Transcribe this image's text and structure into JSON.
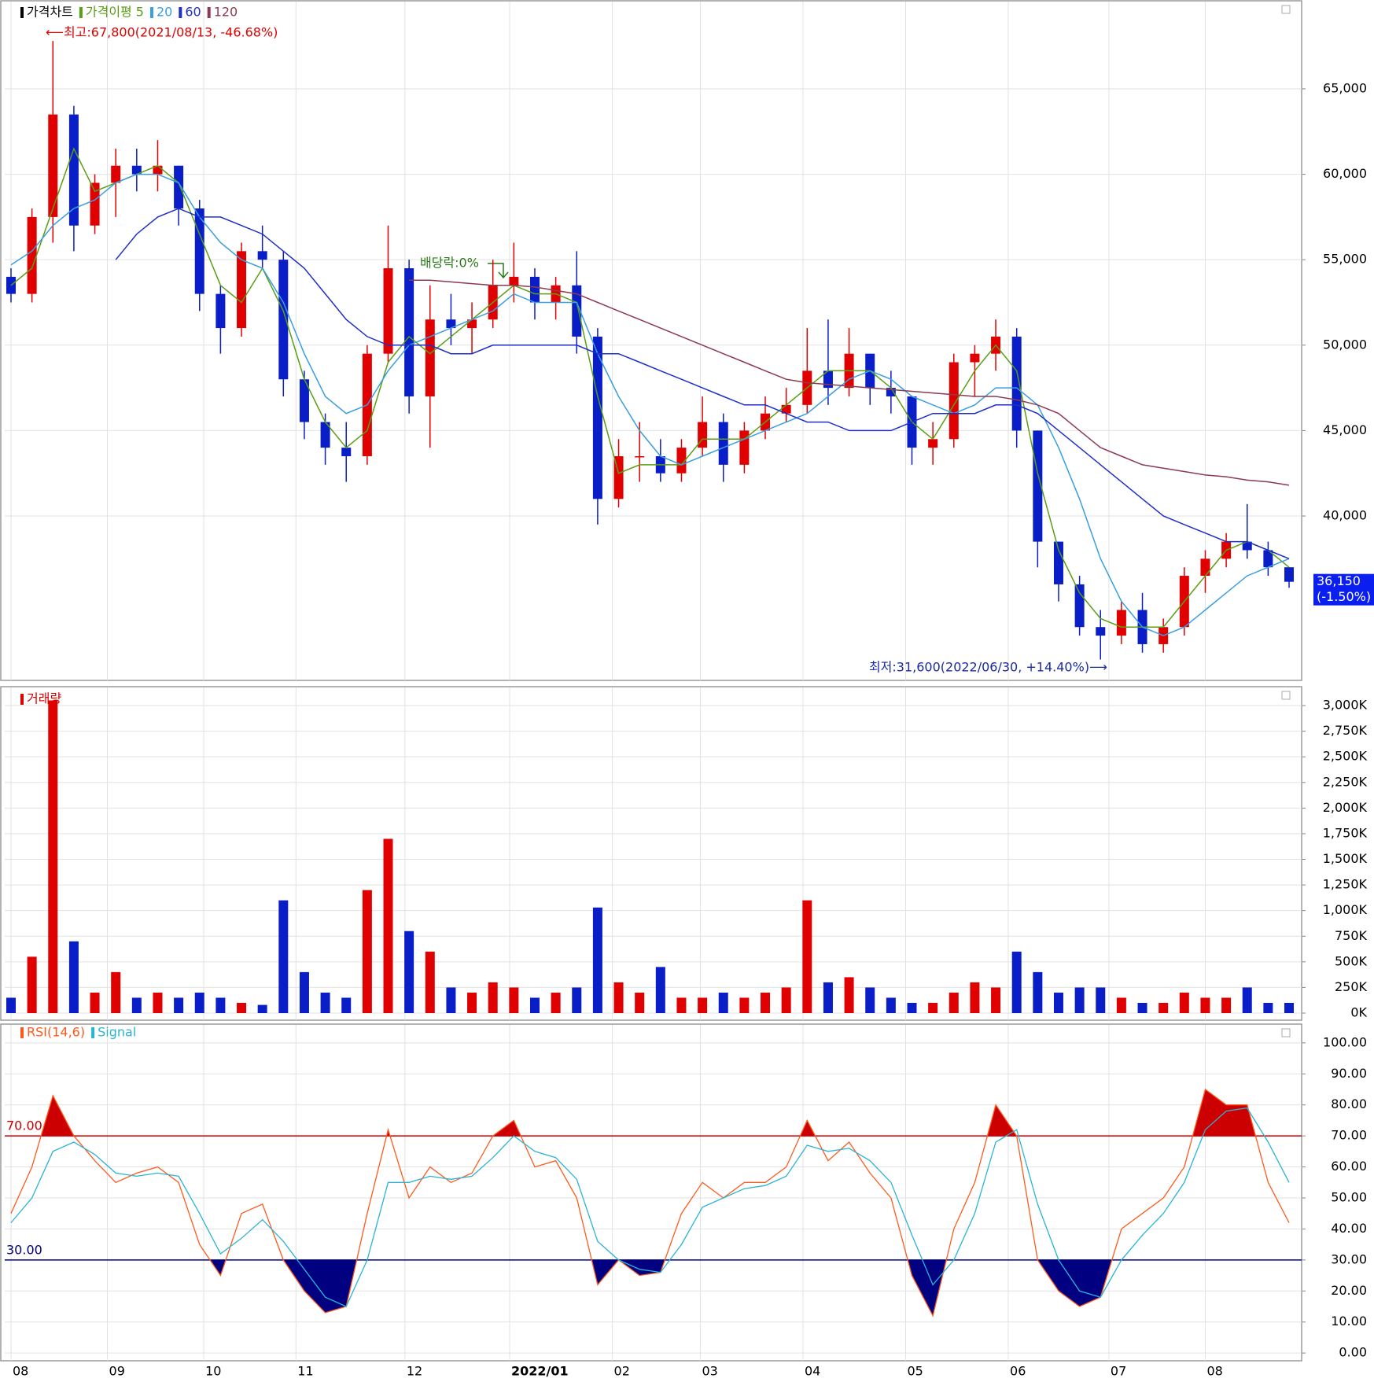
{
  "chart_data": [
    {
      "type": "candlestick",
      "title": "가격차트",
      "ma_label": "가격이평",
      "categories": [
        null,
        null,
        null,
        null,
        null,
        null,
        null,
        null,
        null,
        null,
        null,
        null,
        null,
        null,
        null,
        null,
        null,
        null,
        null,
        null,
        null,
        null,
        null,
        null,
        null,
        null,
        null,
        null,
        null,
        null,
        null,
        null,
        null,
        null,
        null,
        null,
        null,
        null,
        null,
        null,
        null,
        null,
        null,
        null,
        null,
        null,
        null,
        null,
        null,
        null,
        null,
        null,
        null,
        null,
        null,
        null,
        null,
        null,
        null,
        null,
        null,
        null
      ],
      "open": [
        54000,
        53000,
        57500,
        63500,
        57000,
        59500,
        60500,
        60000,
        60500,
        58000,
        53000,
        51000,
        55500,
        55000,
        48000,
        45500,
        44000,
        43500,
        49500,
        54500,
        47000,
        51500,
        51000,
        51500,
        53500,
        54000,
        52500,
        53500,
        50500,
        41000,
        43500,
        43500,
        42500,
        44000,
        45500,
        43000,
        45000,
        46000,
        46500,
        48500,
        47500,
        49500,
        47500,
        47000,
        44000,
        44500,
        49000,
        49500,
        50500,
        45000,
        38500,
        36000,
        33500,
        33000,
        34500,
        32500,
        33500,
        36500,
        37500,
        38500,
        38000,
        37000
      ],
      "high": [
        54500,
        58000,
        67800,
        64000,
        60000,
        61500,
        61500,
        62000,
        60500,
        58500,
        53500,
        56000,
        57000,
        55500,
        48500,
        46000,
        45500,
        50000,
        57000,
        55000,
        53500,
        53000,
        52500,
        55000,
        56000,
        54500,
        54000,
        55500,
        51000,
        44500,
        45500,
        44500,
        44500,
        47000,
        46000,
        45500,
        47000,
        47500,
        51000,
        51500,
        51000,
        49500,
        48500,
        47000,
        45500,
        49500,
        50000,
        51500,
        51000,
        45000,
        38500,
        36500,
        34500,
        35000,
        35500,
        34000,
        37000,
        38000,
        39000,
        40700,
        38500,
        37000
      ],
      "low": [
        52500,
        52500,
        56000,
        55500,
        56500,
        57500,
        59000,
        59000,
        57000,
        52000,
        49500,
        50500,
        54500,
        47000,
        44500,
        43000,
        42000,
        43000,
        49000,
        46000,
        44000,
        50000,
        49500,
        51000,
        52500,
        51500,
        51500,
        49500,
        39500,
        40500,
        42000,
        42000,
        42000,
        43500,
        42000,
        42500,
        44500,
        45500,
        46000,
        46500,
        47000,
        46500,
        46000,
        43000,
        43000,
        44000,
        47000,
        48500,
        44000,
        37000,
        35000,
        33000,
        31600,
        32500,
        32000,
        32000,
        33000,
        35500,
        37000,
        37500,
        36500,
        35800
      ],
      "close": [
        53000,
        57500,
        63500,
        57000,
        59500,
        60500,
        60000,
        60500,
        58000,
        53000,
        51000,
        55500,
        55000,
        48000,
        45500,
        44000,
        43500,
        49500,
        54500,
        47000,
        51500,
        51000,
        51500,
        53500,
        54000,
        52500,
        53500,
        50500,
        41000,
        43500,
        43500,
        42500,
        44000,
        45500,
        43000,
        45000,
        46000,
        46500,
        48500,
        47500,
        49500,
        47500,
        47000,
        44000,
        44500,
        49000,
        49500,
        50500,
        45000,
        38500,
        36000,
        33500,
        33000,
        34500,
        32500,
        33500,
        36500,
        37500,
        38500,
        38000,
        37000,
        36150
      ],
      "up_color": "#e00000",
      "down_color": "#0a1ec8",
      "series": [
        {
          "name": "5",
          "color": "#5a9e14",
          "values": [
            53500,
            54500,
            58000,
            61500,
            59000,
            59500,
            60000,
            60500,
            59500,
            56500,
            53500,
            52500,
            54500,
            52000,
            48000,
            45500,
            44000,
            45000,
            49000,
            50500,
            49500,
            50500,
            51500,
            52500,
            53500,
            53000,
            53000,
            52500,
            47000,
            42500,
            43000,
            43000,
            43000,
            44500,
            44500,
            44500,
            45500,
            46500,
            47500,
            48500,
            48500,
            48500,
            47500,
            45500,
            44500,
            46500,
            48500,
            50000,
            48500,
            42500,
            38000,
            35500,
            34000,
            33500,
            33500,
            33500,
            35000,
            36500,
            38000,
            38500,
            38000,
            37000
          ]
        },
        {
          "name": "20",
          "color": "#3a9ee0",
          "values": [
            54700,
            55500,
            57000,
            58000,
            58500,
            59500,
            60000,
            60000,
            59500,
            57500,
            56000,
            55000,
            54500,
            52500,
            49500,
            47000,
            46000,
            46500,
            48500,
            50000,
            50500,
            51000,
            51500,
            52000,
            53000,
            52500,
            52500,
            52500,
            49500,
            47000,
            45000,
            43500,
            43000,
            43500,
            44000,
            44500,
            45000,
            45500,
            46000,
            47000,
            48000,
            48500,
            48000,
            47000,
            46500,
            46000,
            46500,
            47500,
            47500,
            46500,
            44000,
            41000,
            37500,
            35000,
            33500,
            33000,
            33500,
            34500,
            35500,
            36500,
            37000,
            37500
          ]
        },
        {
          "name": "60",
          "color": "#1e2ec8",
          "values": [
            null,
            null,
            null,
            null,
            null,
            55000,
            56500,
            57500,
            58000,
            57500,
            57500,
            57000,
            56500,
            55500,
            54500,
            53000,
            51500,
            50500,
            50000,
            50000,
            50000,
            49500,
            49500,
            50000,
            50000,
            50000,
            50000,
            50000,
            49500,
            49500,
            49000,
            48500,
            48000,
            47500,
            47000,
            46500,
            46500,
            46000,
            45500,
            45500,
            45000,
            45000,
            45000,
            45500,
            46000,
            46000,
            46000,
            46500,
            46500,
            46000,
            45000,
            44000,
            43000,
            42000,
            41000,
            40000,
            39500,
            39000,
            38500,
            38500,
            38000,
            37500
          ]
        },
        {
          "name": "120",
          "color": "#8c3a4e",
          "values": [
            null,
            null,
            null,
            null,
            null,
            null,
            null,
            null,
            null,
            null,
            null,
            null,
            null,
            null,
            null,
            null,
            null,
            null,
            null,
            53800,
            53800,
            53700,
            53600,
            53500,
            53500,
            53400,
            53200,
            53000,
            52500,
            52000,
            51500,
            51000,
            50500,
            50000,
            49500,
            49000,
            48500,
            48000,
            47800,
            47700,
            47600,
            47500,
            47400,
            47300,
            47200,
            47100,
            47000,
            47000,
            46800,
            46500,
            46000,
            45000,
            44000,
            43500,
            43000,
            42800,
            42600,
            42400,
            42300,
            42100,
            42000,
            41800
          ]
        }
      ],
      "ylim": [
        30380,
        70200
      ],
      "yticks": [
        {
          "value": 40000,
          "label": "40,000"
        },
        {
          "value": 45000,
          "label": "45,000"
        },
        {
          "value": 50000,
          "label": "50,000"
        },
        {
          "value": 55000,
          "label": "55,000"
        },
        {
          "value": 60000,
          "label": "60,000"
        },
        {
          "value": 65000,
          "label": "65,000"
        }
      ],
      "annotations": [
        "⟵최고:67,800(2021/08/13, -46.68%)",
        "배당락:0%",
        "최저:31,600(2022/06/30, +14.40%)⟶"
      ],
      "last_price_label": "36,150",
      "last_change_label": "(-1.50%)"
    },
    {
      "type": "bar",
      "title": "거래량",
      "title_color": "#e00000",
      "values": [
        150,
        550,
        3050,
        700,
        200,
        400,
        150,
        200,
        150,
        200,
        150,
        100,
        80,
        1100,
        400,
        200,
        150,
        1200,
        1700,
        800,
        600,
        250,
        200,
        300,
        250,
        150,
        200,
        250,
        1030,
        300,
        200,
        450,
        150,
        150,
        200,
        150,
        200,
        250,
        1100,
        300,
        350,
        250,
        150,
        100,
        100,
        200,
        300,
        250,
        600,
        400,
        200,
        250,
        250,
        150,
        100,
        100,
        200,
        150,
        150,
        250,
        100,
        100
      ],
      "ylim": [
        -69,
        3192
      ],
      "yticks": [
        {
          "value": 0,
          "label": "0K"
        },
        {
          "value": 250,
          "label": "250K"
        },
        {
          "value": 500,
          "label": "500K"
        },
        {
          "value": 750,
          "label": "750K"
        },
        {
          "value": 1000,
          "label": "1,000K"
        },
        {
          "value": 1250,
          "label": "1,250K"
        },
        {
          "value": 1500,
          "label": "1,500K"
        },
        {
          "value": 1750,
          "label": "1,750K"
        },
        {
          "value": 2000,
          "label": "2,000K"
        },
        {
          "value": 2250,
          "label": "2,250K"
        },
        {
          "value": 2500,
          "label": "2,500K"
        },
        {
          "value": 2750,
          "label": "2,750K"
        },
        {
          "value": 3000,
          "label": "3,000K"
        }
      ]
    },
    {
      "type": "line",
      "series": [
        {
          "name": "RSI(14,6)",
          "color": "#ff5a1e",
          "values": [
            45,
            60,
            83,
            70,
            62,
            55,
            58,
            60,
            55,
            35,
            25,
            45,
            48,
            30,
            20,
            13,
            15,
            45,
            72,
            50,
            60,
            55,
            58,
            70,
            75,
            60,
            62,
            50,
            22,
            30,
            25,
            26,
            45,
            55,
            50,
            55,
            55,
            60,
            75,
            62,
            68,
            58,
            50,
            25,
            12,
            40,
            55,
            80,
            70,
            30,
            20,
            15,
            18,
            40,
            45,
            50,
            60,
            85,
            80,
            80,
            55,
            42
          ]
        },
        {
          "name": "Signal",
          "color": "#2ab4d4",
          "values": [
            42,
            50,
            65,
            68,
            64,
            58,
            57,
            58,
            57,
            45,
            32,
            37,
            43,
            36,
            27,
            18,
            15,
            30,
            55,
            55,
            57,
            56,
            57,
            63,
            70,
            65,
            63,
            56,
            36,
            30,
            27,
            26,
            35,
            47,
            50,
            53,
            54,
            57,
            67,
            65,
            66,
            62,
            55,
            38,
            22,
            30,
            45,
            68,
            72,
            48,
            30,
            20,
            18,
            30,
            38,
            45,
            55,
            72,
            78,
            79,
            68,
            55
          ]
        }
      ],
      "ref_lines": [
        {
          "value": 70,
          "label": "70.00",
          "color": "#cc0000"
        },
        {
          "value": 30,
          "label": "30.00",
          "color": "#000080"
        }
      ],
      "ylim": [
        -2.5,
        106.3
      ],
      "yticks": [
        {
          "value": 0,
          "label": "0.00"
        },
        {
          "value": 10,
          "label": "10.00"
        },
        {
          "value": 20,
          "label": "20.00"
        },
        {
          "value": 30,
          "label": "30.00"
        },
        {
          "value": 40,
          "label": "40.00"
        },
        {
          "value": 50,
          "label": "50.00"
        },
        {
          "value": 60,
          "label": "60.00"
        },
        {
          "value": 70,
          "label": "70.00"
        },
        {
          "value": 80,
          "label": "80.00"
        },
        {
          "value": 90,
          "label": "90.00"
        },
        {
          "value": 100,
          "label": "100.00"
        }
      ],
      "xlim": [
        -0.3,
        61.6
      ],
      "xticks": [
        {
          "value": 0,
          "label": "08"
        },
        {
          "value": 4.6,
          "label": "09"
        },
        {
          "value": 9.2,
          "label": "10"
        },
        {
          "value": 13.6,
          "label": "11"
        },
        {
          "value": 18.8,
          "label": "12"
        },
        {
          "value": 23.8,
          "label": "2022/01"
        },
        {
          "value": 28.7,
          "label": "02"
        },
        {
          "value": 32.9,
          "label": "03"
        },
        {
          "value": 37.8,
          "label": "04"
        },
        {
          "value": 42.7,
          "label": "05"
        },
        {
          "value": 47.6,
          "label": "06"
        },
        {
          "value": 52.4,
          "label": "07"
        },
        {
          "value": 57.0,
          "label": "08"
        }
      ]
    }
  ]
}
